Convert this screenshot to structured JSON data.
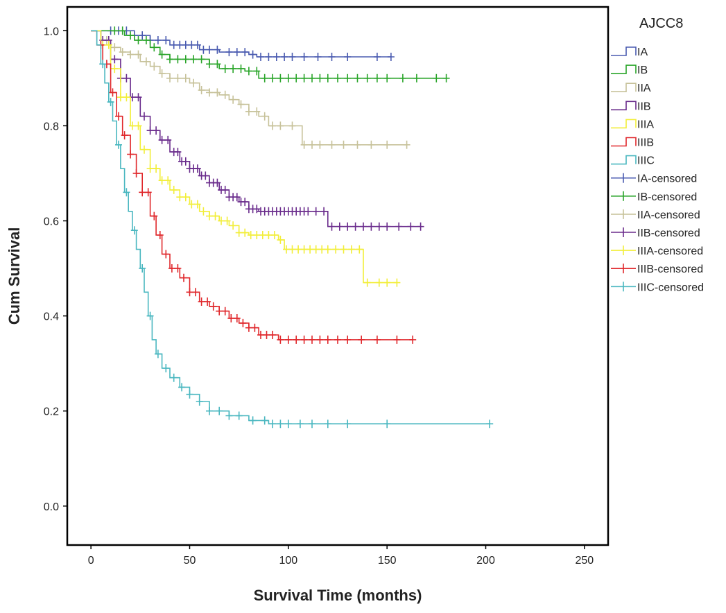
{
  "chart_data": {
    "type": "line",
    "xlabel": "Survival Time (months)",
    "ylabel": "Cum Survival",
    "xlim": [
      -12,
      262
    ],
    "ylim": [
      -0.082,
      1.05
    ],
    "x_ticks": [
      0,
      50,
      100,
      150,
      200,
      250
    ],
    "x_tick_labels": [
      "0",
      "50",
      "100",
      "150",
      "200",
      "250"
    ],
    "y_ticks": [
      0.0,
      0.2,
      0.4,
      0.6,
      0.8,
      1.0
    ],
    "y_tick_labels": [
      "0.0",
      "0.2",
      "0.4",
      "0.6",
      "0.8",
      "1.0"
    ],
    "legend_title": "AJCC8",
    "legend_position": "right",
    "grid": false,
    "series": [
      {
        "name": "IA",
        "censored_name": "IA-censored",
        "color": "#4a5bb0",
        "steps": [
          [
            0,
            1.0
          ],
          [
            18,
            1.0
          ],
          [
            22,
            0.99
          ],
          [
            30,
            0.98
          ],
          [
            40,
            0.97
          ],
          [
            55,
            0.96
          ],
          [
            65,
            0.955
          ],
          [
            80,
            0.95
          ],
          [
            84,
            0.945
          ],
          [
            152,
            0.945
          ]
        ],
        "censored": [
          10,
          14,
          18,
          22,
          26,
          30,
          34,
          38,
          42,
          45,
          48,
          51,
          54,
          57,
          60,
          64,
          70,
          74,
          78,
          82,
          86,
          90,
          94,
          98,
          102,
          108,
          115,
          122,
          130,
          145,
          152
        ]
      },
      {
        "name": "IB",
        "censored_name": "IB-censored",
        "color": "#2aa52a",
        "steps": [
          [
            0,
            1.0
          ],
          [
            12,
            1.0
          ],
          [
            17,
            0.99
          ],
          [
            22,
            0.98
          ],
          [
            30,
            0.965
          ],
          [
            35,
            0.95
          ],
          [
            40,
            0.94
          ],
          [
            60,
            0.93
          ],
          [
            65,
            0.92
          ],
          [
            78,
            0.915
          ],
          [
            85,
            0.9
          ],
          [
            180,
            0.9
          ]
        ],
        "censored": [
          12,
          16,
          20,
          24,
          28,
          32,
          36,
          40,
          44,
          48,
          52,
          56,
          60,
          64,
          68,
          72,
          76,
          80,
          84,
          88,
          92,
          96,
          100,
          104,
          108,
          112,
          116,
          120,
          125,
          130,
          135,
          140,
          145,
          150,
          158,
          165,
          175,
          180
        ]
      },
      {
        "name": "IIA",
        "censored_name": "IIA-censored",
        "color": "#c7c29a",
        "steps": [
          [
            0,
            1.0
          ],
          [
            5,
            0.98
          ],
          [
            10,
            0.965
          ],
          [
            15,
            0.955
          ],
          [
            20,
            0.95
          ],
          [
            25,
            0.935
          ],
          [
            30,
            0.925
          ],
          [
            35,
            0.91
          ],
          [
            40,
            0.9
          ],
          [
            50,
            0.89
          ],
          [
            55,
            0.875
          ],
          [
            60,
            0.87
          ],
          [
            65,
            0.865
          ],
          [
            70,
            0.855
          ],
          [
            75,
            0.845
          ],
          [
            80,
            0.83
          ],
          [
            85,
            0.82
          ],
          [
            90,
            0.8
          ],
          [
            105,
            0.8
          ],
          [
            107,
            0.76
          ],
          [
            160,
            0.76
          ]
        ],
        "censored": [
          8,
          12,
          16,
          20,
          24,
          28,
          32,
          36,
          40,
          44,
          48,
          52,
          56,
          60,
          64,
          68,
          72,
          76,
          80,
          84,
          88,
          92,
          96,
          102,
          108,
          112,
          116,
          122,
          128,
          135,
          142,
          150,
          160
        ]
      },
      {
        "name": "IIB",
        "censored_name": "IIB-censored",
        "color": "#6a2c8c",
        "steps": [
          [
            0,
            1.0
          ],
          [
            5,
            0.98
          ],
          [
            10,
            0.94
          ],
          [
            15,
            0.9
          ],
          [
            20,
            0.86
          ],
          [
            25,
            0.82
          ],
          [
            30,
            0.79
          ],
          [
            35,
            0.77
          ],
          [
            40,
            0.745
          ],
          [
            45,
            0.725
          ],
          [
            50,
            0.71
          ],
          [
            55,
            0.695
          ],
          [
            60,
            0.68
          ],
          [
            65,
            0.665
          ],
          [
            70,
            0.65
          ],
          [
            75,
            0.64
          ],
          [
            80,
            0.625
          ],
          [
            85,
            0.62
          ],
          [
            118,
            0.62
          ],
          [
            120,
            0.588
          ],
          [
            167,
            0.588
          ]
        ],
        "censored": [
          6,
          9,
          12,
          15,
          18,
          21,
          24,
          27,
          30,
          33,
          36,
          39,
          42,
          44,
          46,
          48,
          50,
          52,
          54,
          56,
          58,
          60,
          62,
          64,
          66,
          68,
          70,
          72,
          74,
          76,
          78,
          80,
          82,
          84,
          86,
          88,
          90,
          92,
          94,
          96,
          98,
          100,
          102,
          104,
          106,
          108,
          110,
          114,
          118,
          122,
          126,
          130,
          134,
          138,
          142,
          146,
          150,
          156,
          162,
          167
        ]
      },
      {
        "name": "IIIA",
        "censored_name": "IIIA-censored",
        "color": "#f2ee3a",
        "steps": [
          [
            0,
            1.0
          ],
          [
            5,
            0.97
          ],
          [
            10,
            0.92
          ],
          [
            15,
            0.86
          ],
          [
            20,
            0.8
          ],
          [
            25,
            0.75
          ],
          [
            30,
            0.71
          ],
          [
            35,
            0.685
          ],
          [
            40,
            0.665
          ],
          [
            45,
            0.65
          ],
          [
            50,
            0.635
          ],
          [
            55,
            0.62
          ],
          [
            60,
            0.61
          ],
          [
            65,
            0.6
          ],
          [
            70,
            0.59
          ],
          [
            75,
            0.575
          ],
          [
            80,
            0.57
          ],
          [
            95,
            0.56
          ],
          [
            98,
            0.54
          ],
          [
            137,
            0.54
          ],
          [
            138,
            0.47
          ],
          [
            155,
            0.47
          ]
        ],
        "censored": [
          6,
          9,
          12,
          15,
          18,
          21,
          24,
          27,
          30,
          33,
          36,
          39,
          42,
          45,
          48,
          51,
          54,
          57,
          60,
          63,
          66,
          69,
          72,
          75,
          78,
          81,
          84,
          87,
          90,
          93,
          96,
          99,
          102,
          105,
          108,
          111,
          114,
          117,
          120,
          124,
          128,
          132,
          136,
          140,
          146,
          150,
          155
        ]
      },
      {
        "name": "IIIB",
        "censored_name": "IIIB-censored",
        "color": "#e0282c",
        "steps": [
          [
            0,
            1.0
          ],
          [
            3,
            0.97
          ],
          [
            6,
            0.93
          ],
          [
            10,
            0.87
          ],
          [
            13,
            0.82
          ],
          [
            16,
            0.78
          ],
          [
            20,
            0.74
          ],
          [
            23,
            0.7
          ],
          [
            26,
            0.66
          ],
          [
            30,
            0.61
          ],
          [
            33,
            0.57
          ],
          [
            36,
            0.53
          ],
          [
            40,
            0.5
          ],
          [
            45,
            0.48
          ],
          [
            50,
            0.45
          ],
          [
            55,
            0.43
          ],
          [
            60,
            0.42
          ],
          [
            65,
            0.41
          ],
          [
            70,
            0.395
          ],
          [
            75,
            0.385
          ],
          [
            80,
            0.375
          ],
          [
            85,
            0.36
          ],
          [
            95,
            0.35
          ],
          [
            163,
            0.35
          ]
        ],
        "censored": [
          5,
          8,
          11,
          14,
          17,
          20,
          23,
          26,
          29,
          32,
          35,
          38,
          41,
          44,
          47,
          50,
          53,
          56,
          59,
          62,
          65,
          68,
          71,
          74,
          77,
          80,
          83,
          86,
          89,
          92,
          96,
          100,
          104,
          108,
          112,
          116,
          120,
          125,
          130,
          137,
          145,
          155,
          163
        ]
      },
      {
        "name": "IIIC",
        "censored_name": "IIIC-censored",
        "color": "#4ab7c0",
        "steps": [
          [
            0,
            1.0
          ],
          [
            3,
            0.97
          ],
          [
            5,
            0.93
          ],
          [
            7,
            0.89
          ],
          [
            9,
            0.85
          ],
          [
            11,
            0.81
          ],
          [
            13,
            0.76
          ],
          [
            15,
            0.71
          ],
          [
            17,
            0.66
          ],
          [
            19,
            0.62
          ],
          [
            21,
            0.58
          ],
          [
            23,
            0.54
          ],
          [
            25,
            0.5
          ],
          [
            27,
            0.45
          ],
          [
            29,
            0.4
          ],
          [
            31,
            0.35
          ],
          [
            33,
            0.32
          ],
          [
            36,
            0.29
          ],
          [
            40,
            0.27
          ],
          [
            45,
            0.25
          ],
          [
            50,
            0.235
          ],
          [
            55,
            0.22
          ],
          [
            60,
            0.2
          ],
          [
            70,
            0.19
          ],
          [
            80,
            0.18
          ],
          [
            90,
            0.173
          ],
          [
            202,
            0.173
          ]
        ],
        "censored": [
          6,
          10,
          14,
          18,
          22,
          26,
          30,
          34,
          38,
          42,
          46,
          50,
          55,
          60,
          65,
          70,
          75,
          82,
          88,
          92,
          96,
          100,
          106,
          112,
          120,
          130,
          150,
          202
        ]
      }
    ]
  }
}
